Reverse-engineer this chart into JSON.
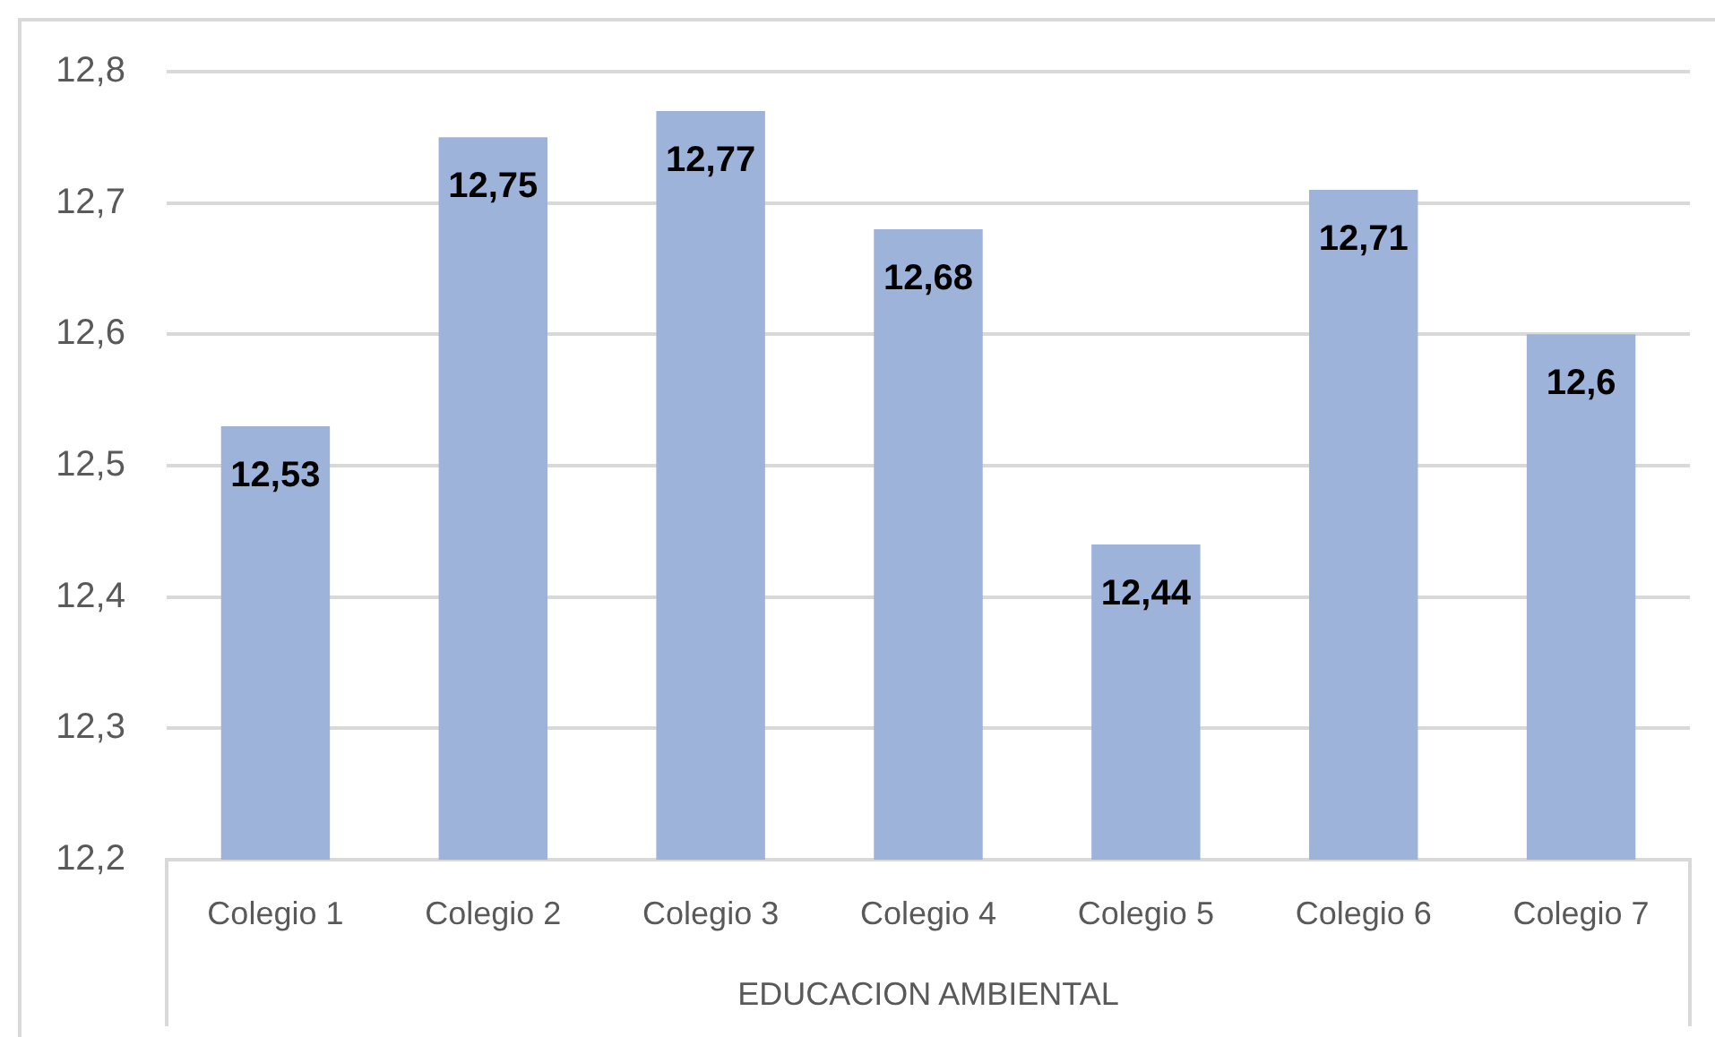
{
  "chart_data": {
    "type": "bar",
    "xlabel": "EDUCACION AMBIENTAL",
    "categories": [
      "Colegio 1",
      "Colegio 2",
      "Colegio 3",
      "Colegio 4",
      "Colegio 5",
      "Colegio 6",
      "Colegio 7"
    ],
    "values": [
      12.53,
      12.75,
      12.77,
      12.68,
      12.44,
      12.71,
      12.6
    ],
    "value_labels": [
      "12,53",
      "12,75",
      "12,77",
      "12,68",
      "12,44",
      "12,71",
      "12,6"
    ],
    "color": "#9db3da",
    "ylim": [
      12.2,
      12.8
    ],
    "yticks": [
      {
        "value": 12.2,
        "label": "12,2"
      },
      {
        "value": 12.3,
        "label": "12,3"
      },
      {
        "value": 12.4,
        "label": "12,4"
      },
      {
        "value": 12.5,
        "label": "12,5"
      },
      {
        "value": 12.6,
        "label": "12,6"
      },
      {
        "value": 12.7,
        "label": "12,7"
      },
      {
        "value": 12.8,
        "label": "12,8"
      }
    ],
    "grid": "y"
  }
}
